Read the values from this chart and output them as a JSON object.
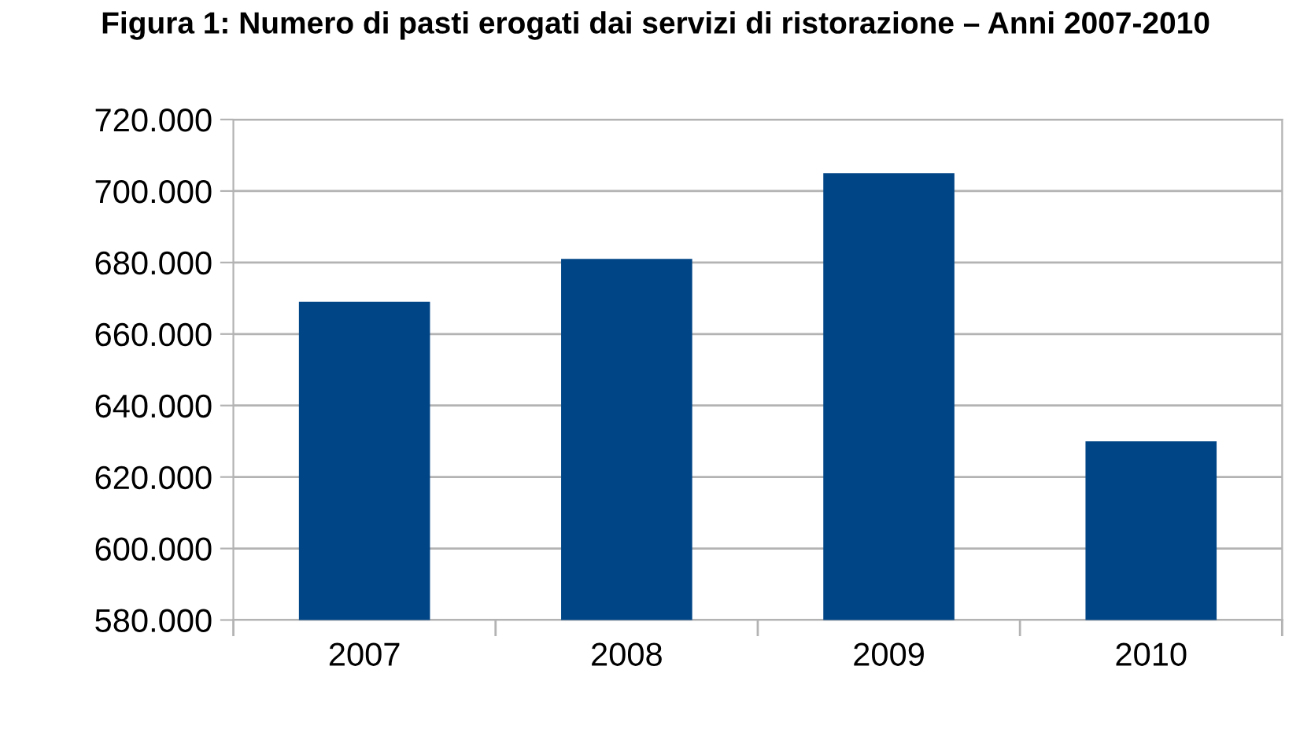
{
  "chart_data": {
    "type": "bar",
    "title": "Figura 1: Numero di pasti erogati dai servizi di ristorazione – Anni 2007-2010",
    "categories": [
      "2007",
      "2008",
      "2009",
      "2010"
    ],
    "values": [
      669000,
      681000,
      705000,
      630000
    ],
    "color": "#004586",
    "ylim": [
      580000,
      720000
    ],
    "yticks": [
      {
        "value": 580000,
        "label": "580.000"
      },
      {
        "value": 600000,
        "label": "600.000"
      },
      {
        "value": 620000,
        "label": "620.000"
      },
      {
        "value": 640000,
        "label": "640.000"
      },
      {
        "value": 660000,
        "label": "660.000"
      },
      {
        "value": 680000,
        "label": "680.000"
      },
      {
        "value": 700000,
        "label": "700.000"
      },
      {
        "value": 720000,
        "label": "720.000"
      }
    ],
    "grid": "y"
  }
}
